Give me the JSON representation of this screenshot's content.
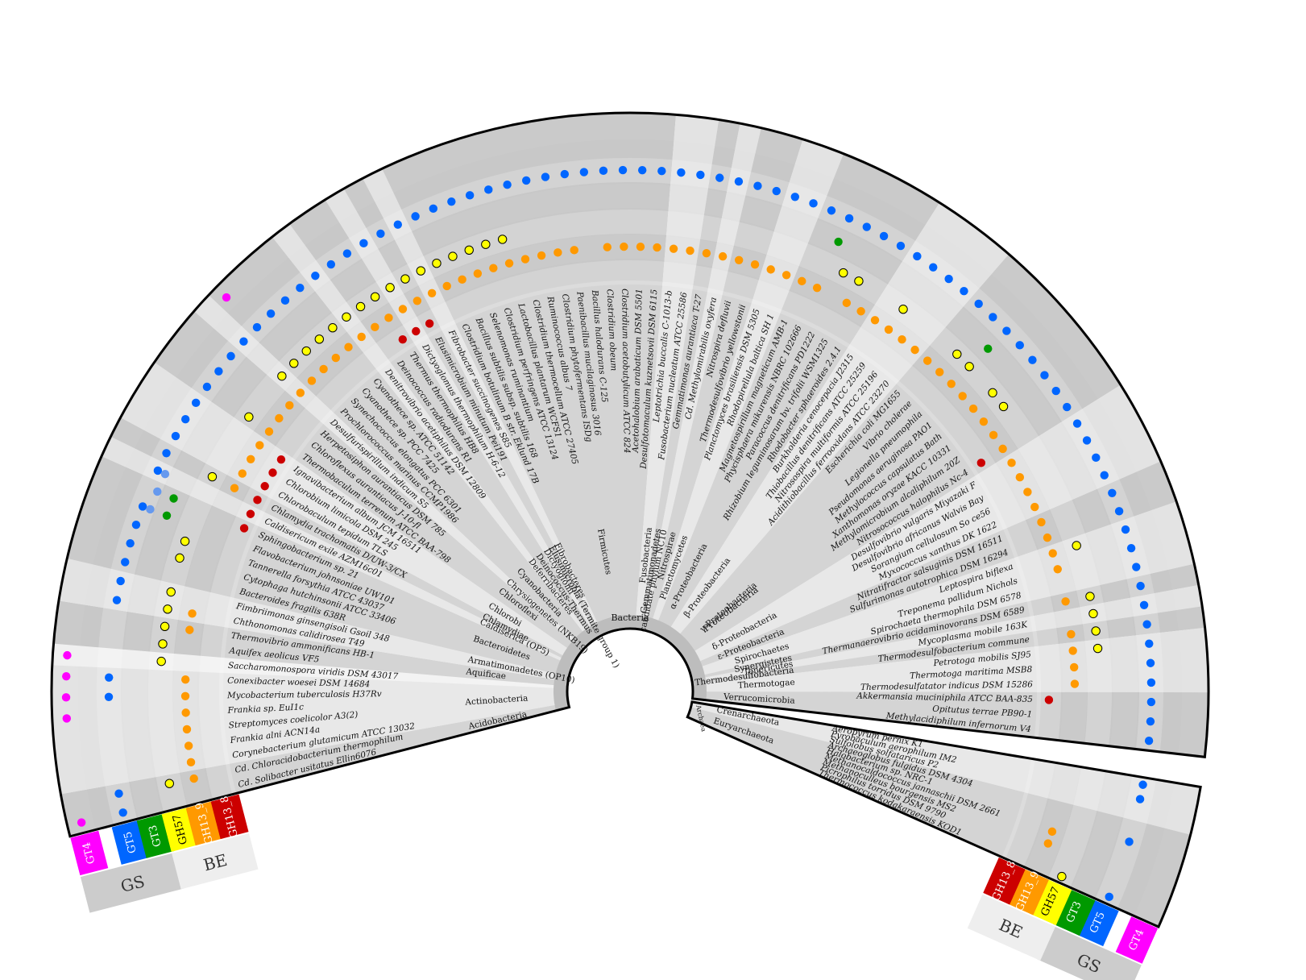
{
  "center_label": "Bacteria",
  "archaea_label": "Archaea",
  "bacteria_species": [
    "Cd. Solibacter usitatus Ellin6076",
    "Cd. Chloracidobacterium thermophilum",
    "Corynebacterium glutamicum ATCC 13032",
    "Frankia alni ACN14a",
    "Streptomyces coelicolor A3(2)",
    "Frankia sp. EuI1c",
    "Mycobacterium tuberculosis H37Rv",
    "Conexibacter woesei DSM 14684",
    "Saccharomonospora viridis DSM 43017",
    "Aquifex aeolicus VF5",
    "Thermovibrio ammonificans HB-1",
    "Chthonomonas calidirosea T49",
    "Fimbriimonas ginsengisoli Gsoil 348",
    "Bacteroides fragilis 638R",
    "Cytophaga hutchinsonii ATCC 33406",
    "Tannerella forsythia ATCC 43037",
    "Flavobacterium johnsoniae UW101",
    "Sphingobacterium sp. 21",
    "Caldisericum exile AZM16c01",
    "Chlamydia trachomatis D/UW-3/CX",
    "Chlorobaculum tepidum TLS",
    "Chlorobium limicola DSM 245",
    "Ignavibacterium album JCM 16511",
    "Thermobaculum terrenum ATCC BAA-798",
    "Chloroflexus aurantiacus J-10-fl",
    "Herpetosiphon aurantiacus DSM 785",
    "Desulfurispirillum indicum S5",
    "Prochlorococcus marinus CCMP1986",
    "Synechococcus elongatus PCC 6301",
    "Cyanothece sp. PCC 7425",
    "Cyanothece sp. ATCC 51142",
    "Denitrovibrio acetiphilus DSM 12809",
    "Deinococcus radiodurans R1",
    "Thermus thermophilus HB8",
    "Dictyoglomus thermophilum H-6-12",
    "Elusimicrobium minutum Pei191",
    "Fibrobacter succinogenes S85",
    "Clostridium botulinum B str. Eklund 17B",
    "Bacillus subtilis subsp. subtilis 168",
    "Selenomonas ruminantium",
    "Clostridium perfringens ATCC 13124",
    "Lactobacillus plantarum WCFS1",
    "Clostridium thermocellum ATCC 27405",
    "Ruminococcus albus 7",
    "Clostridium phytofermentans ISDg",
    "Paenibacillus mucilaginosus 3016",
    "Bacillus halodurans C-125",
    "Clostridium obeum",
    "Clostridium acetobutylicum ATCC 824",
    "Acetohalobium arabaticum DSM 5501",
    "Desulfotomaculum kuznetsovii DSM 6115",
    "Leptotrichia buccalis C-1013-b",
    "Fusobacterium nucleatum ATCC 25586",
    "Gemmatimonas aurantiaca T-27",
    "Cd. Methylomirabilis oxyfera",
    "Nitrospira defluvii",
    "Thermodesulfovibrio yellowstonii",
    "Planctomyces brasiliensis DSM 5305",
    "Rhodopirellula baltica SH 1",
    "Magnetospirillum magneticum AMB-1",
    "Phycisphaera mikurensis NBRC 102666",
    "Paracoccus denitrificans PD1222",
    "Rhizobium leguminosarum bv. trifolii WSM1325",
    "Rhodobacter sphaeroides 2.4.1",
    "Burkholderia cenocepacia J2315",
    "Thiobacillus denitrificans ATCC 25259",
    "Nitrosospira multiformis ATCC 25196",
    "Acidithiobacillus ferrooxidans ATCC 23270",
    "Escherichia coli MG1655",
    "Vibrio cholerae",
    "Legionella pneumophila",
    "Pseudomonas aeruginosa PAO1",
    "Methylococcus capsulatus Bath",
    "Xanthomonas oryzae KACC 10331",
    "Methylomicrobium alcaliphilum 20Z",
    "Nitrosococcus halophilus Nc-4",
    "Desulfovibrio vulgaris Miyazaki F",
    "Desulfovibrio africanus Walvis Bay",
    "Sorangium cellulosum So ce56",
    "Myxococcus xanthus DK 1622",
    "Nitratifractor salsuginis DSM 16511",
    "Sulfurimonas autotrophica DSM 16294",
    "Leptospira biflexa",
    "Treponema pallidum Nichols",
    "Spirochaeta thermophila DSM 6578",
    "Thermanaerovibrio acidaminovorans DSM 6589",
    "Mycoplasma mobile 163K",
    "Thermodesulfobacterium commune",
    "Petrotoga mobilis SJ95",
    "Thermotoga maritima MSB8",
    "Thermodesulfatator indicus DSM 15286",
    "Akkermansia muciniphila ATCC BAA-835",
    "Opitutus terrae PB90-1",
    "Methylacidiphilum infernorum V4"
  ],
  "bacteria_phyla": [
    {
      "name": "Acidobacteria",
      "start": 0,
      "end": 2
    },
    {
      "name": "Actinobacteria",
      "start": 2,
      "end": 8
    },
    {
      "name": "Aquificae",
      "start": 9,
      "end": 11
    },
    {
      "name": "Armatimonadetes (OP10)",
      "start": 11,
      "end": 13
    },
    {
      "name": "Bacteroidetes",
      "start": 13,
      "end": 18
    },
    {
      "name": "Caldiserica (OP5)",
      "start": 18,
      "end": 19
    },
    {
      "name": "Chlamydiae",
      "start": 19,
      "end": 20
    },
    {
      "name": "Chlorobi",
      "start": 20,
      "end": 23
    },
    {
      "name": "Chloroflexi",
      "start": 23,
      "end": 26
    },
    {
      "name": "Chrysiogenetes (NKB19)",
      "start": 26,
      "end": 27
    },
    {
      "name": "Cyanobacteria",
      "start": 27,
      "end": 31
    },
    {
      "name": "Deferribacteres",
      "start": 31,
      "end": 32
    },
    {
      "name": "Deinococcus-Thermus",
      "start": 32,
      "end": 34
    },
    {
      "name": "Dictyoglomi",
      "start": 34,
      "end": 35
    },
    {
      "name": "Elusimicrobia (Termite group 1)",
      "start": 35,
      "end": 36
    },
    {
      "name": "Fibrobacteres",
      "start": 36,
      "end": 37
    },
    {
      "name": "Firmicutes",
      "start": 37,
      "end": 51
    },
    {
      "name": "Fusobacteria",
      "start": 51,
      "end": 53
    },
    {
      "name": "Gemmatimonadetes",
      "start": 53,
      "end": 54
    },
    {
      "name": "candidate phylum NC10",
      "start": 54,
      "end": 55
    },
    {
      "name": "Nitrospirae",
      "start": 55,
      "end": 57
    },
    {
      "name": "Planctomycetes",
      "start": 57,
      "end": 59
    },
    {
      "name": "α-Proteobacteria",
      "start": 59,
      "end": 64
    },
    {
      "name": "β-Proteobacteria",
      "start": 64,
      "end": 68
    },
    {
      "name": "γ-Proteobacteria",
      "start": 68,
      "end": 76
    },
    {
      "name": "δ-Proteobacteria",
      "start": 76,
      "end": 80
    },
    {
      "name": "ε-Proteobacteria",
      "start": 80,
      "end": 82
    },
    {
      "name": "Spirochaetes",
      "start": 82,
      "end": 85
    },
    {
      "name": "Synergistetes",
      "start": 85,
      "end": 86
    },
    {
      "name": "Tenericutes",
      "start": 86,
      "end": 87
    },
    {
      "name": "Thermodesulfobacteria",
      "start": 87,
      "end": 88
    },
    {
      "name": "Thermotogae",
      "start": 88,
      "end": 91
    },
    {
      "name": "Verrucomicrobia",
      "start": 91,
      "end": 94
    }
  ],
  "proteobacteria_label": "Proteobacteria",
  "archaea_species": [
    "Aeropyrum pernix K1",
    "Pyrobaculum aerophilum IM2",
    "Sulfolobus solfataricus P2",
    "Archaeoglobus fulgidus DSM 4304",
    "Halobacterium sp. NRC-1",
    "Methanocaldococcus jannaschii DSM 2661",
    "Methanoculleus bourgensis MS2",
    "Picrophilus torridus DSM 9790",
    "Thermococcus kodakaraensis KOD1"
  ],
  "archaea_phyla": [
    {
      "name": "Crenarchaeota",
      "start": 0,
      "end": 3
    },
    {
      "name": "Euryarchaeota",
      "start": 3,
      "end": 9
    }
  ],
  "families": [
    {
      "name": "GT4",
      "color": "#ff00ff"
    },
    {
      "name": "GT5",
      "color": "#0066ff"
    },
    {
      "name": "GT3",
      "color": "#009900"
    },
    {
      "name": "GH57",
      "color": "#ffff00"
    },
    {
      "name": "GH13_9",
      "color": "#ff9900"
    },
    {
      "name": "GH13_8",
      "color": "#cc0000"
    }
  ],
  "groups": [
    {
      "name": "GS",
      "members": [
        "GT4",
        "GT5",
        "GT3"
      ]
    },
    {
      "name": "BE",
      "members": [
        "GH57",
        "GH13_9",
        "GH13_8"
      ]
    }
  ],
  "gt5_light_color": "#6699ee",
  "bacteria_presence": {
    "GT4": [
      0,
      5,
      6,
      7,
      8,
      27
    ],
    "GT5": [
      0,
      1,
      6,
      7,
      11,
      12,
      13,
      14,
      15,
      16,
      18,
      19,
      20,
      21,
      22,
      23,
      24,
      25,
      26,
      27,
      28,
      29,
      30,
      31,
      32,
      33,
      34,
      35,
      36,
      37,
      38,
      39,
      40,
      41,
      42,
      43,
      44,
      45,
      46,
      47,
      48,
      49,
      50,
      51,
      52,
      53,
      54,
      55,
      56,
      57,
      58,
      59,
      60,
      61,
      62,
      63,
      64,
      65,
      66,
      67,
      68,
      69,
      70,
      71,
      72,
      73,
      74,
      75,
      76,
      77,
      78,
      79,
      80,
      81,
      82,
      83,
      84,
      85,
      86,
      87,
      88,
      89,
      90,
      91,
      92,
      93
    ],
    "GT5_light": [
      16,
      17,
      18
    ],
    "GT3": [
      16,
      17,
      60,
      70
    ],
    "GH57": [
      1,
      8,
      9,
      10,
      11,
      12,
      14,
      15,
      19,
      23,
      26,
      27,
      28,
      29,
      30,
      31,
      32,
      33,
      34,
      35,
      36,
      37,
      38,
      39,
      40,
      41,
      61,
      62,
      65,
      69,
      70,
      72,
      73,
      82,
      85,
      86,
      87,
      88
    ],
    "GH13_9": [
      1,
      2,
      3,
      4,
      5,
      6,
      7,
      10,
      11,
      19,
      20,
      21,
      22,
      23,
      24,
      25,
      26,
      27,
      28,
      29,
      30,
      31,
      32,
      33,
      34,
      35,
      36,
      37,
      38,
      39,
      40,
      41,
      42,
      43,
      44,
      45,
      47,
      48,
      49,
      50,
      51,
      52,
      53,
      54,
      55,
      56,
      57,
      58,
      59,
      60,
      62,
      63,
      64,
      65,
      66,
      67,
      68,
      69,
      70,
      71,
      72,
      73,
      74,
      75,
      76,
      77,
      78,
      79,
      80,
      81,
      82,
      83,
      85,
      87,
      88,
      89,
      90
    ],
    "GH13_8": [
      17,
      18,
      19,
      20,
      21,
      22,
      33,
      34,
      35,
      75,
      91
    ]
  },
  "archaea_presence": {
    "GT4": [],
    "GT5": [
      0,
      1,
      4,
      8
    ],
    "GT3": [],
    "GH57": [
      8
    ],
    "GH13_9": [
      5,
      6
    ],
    "GH13_8": []
  }
}
